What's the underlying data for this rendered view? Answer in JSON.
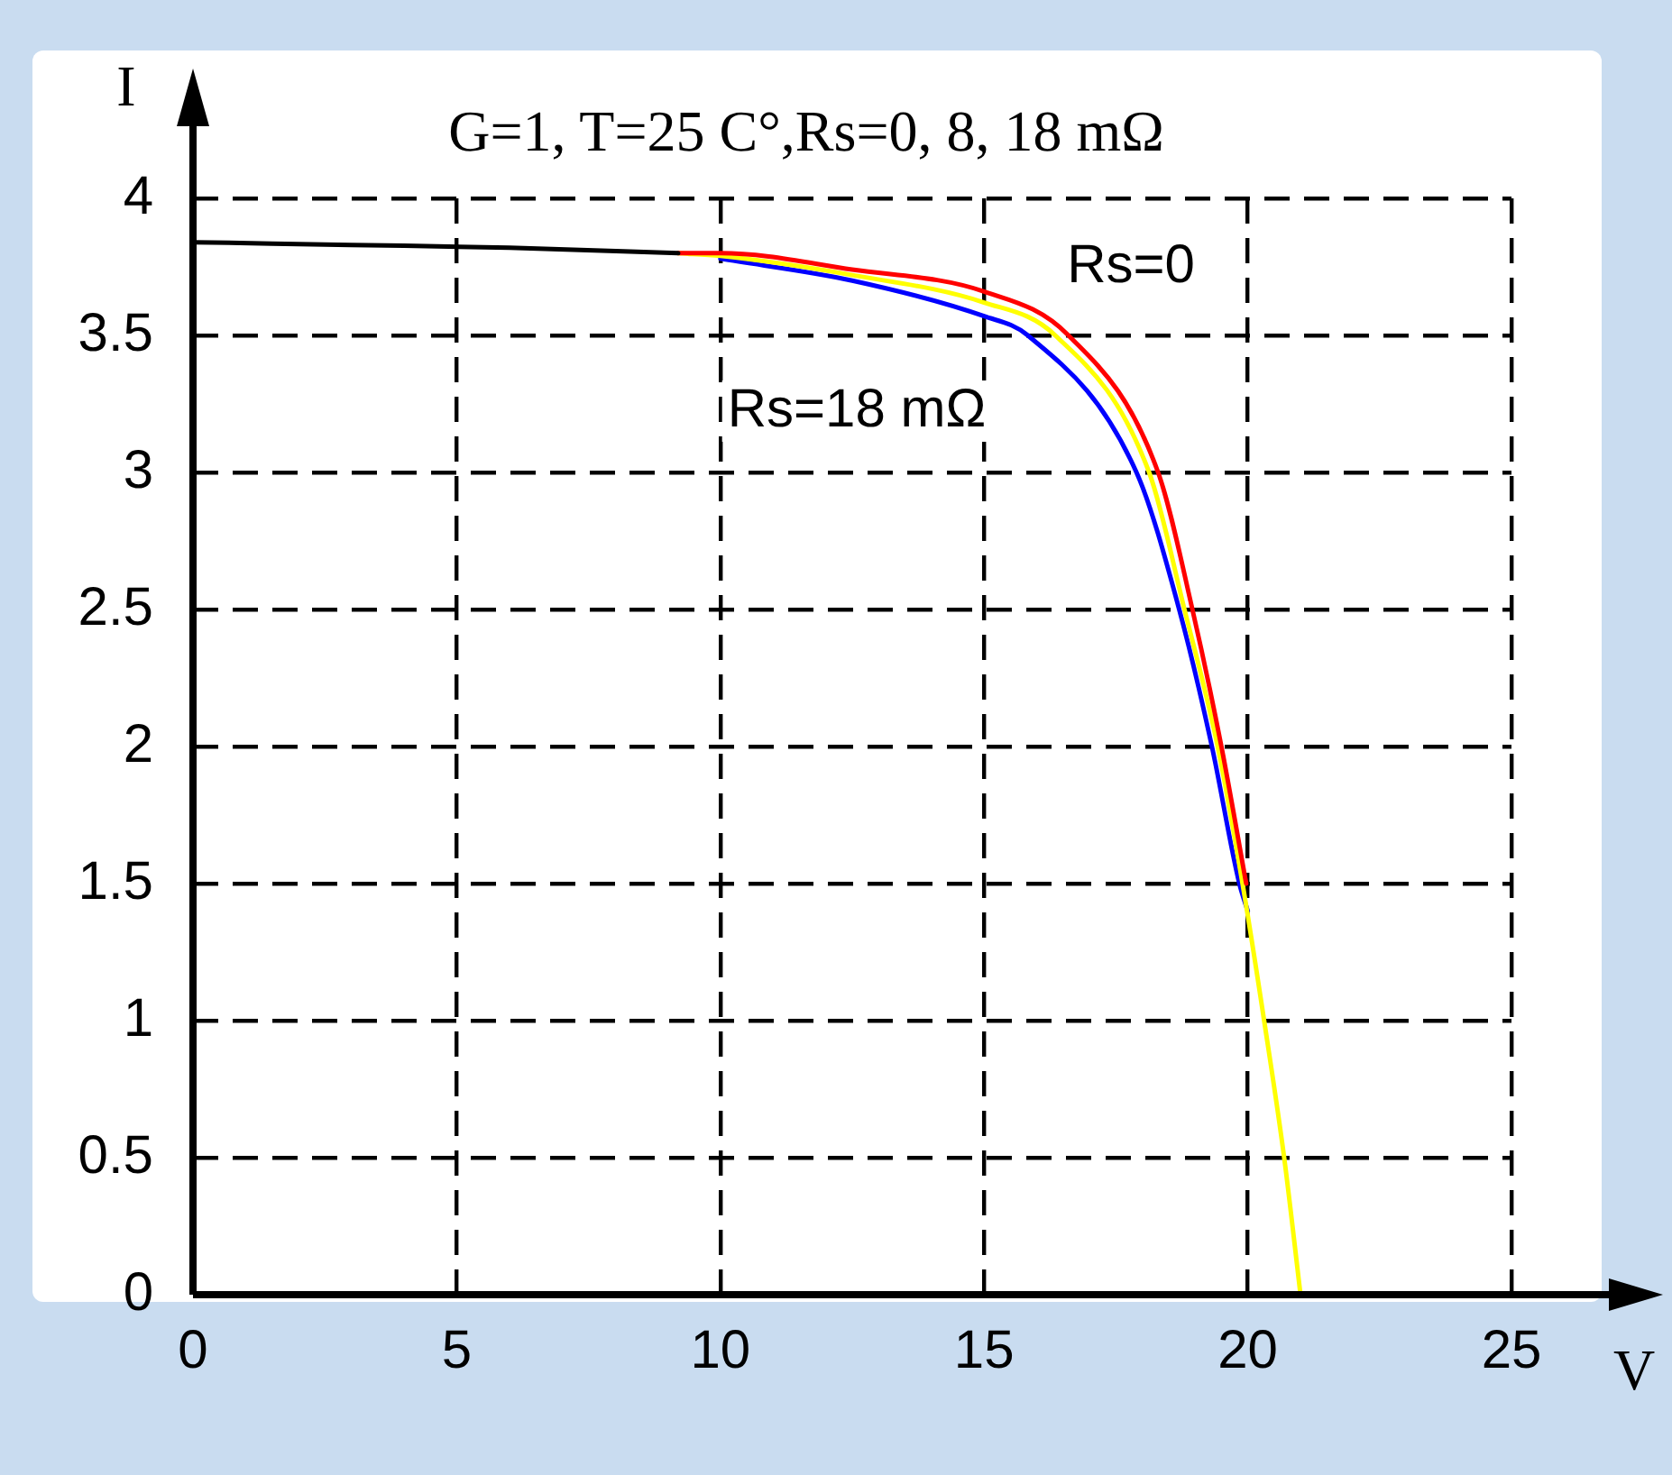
{
  "chart_data": {
    "type": "line",
    "title": "G=1, T=25 C°,Rs=0, 8, 18 mΩ",
    "xlabel": "V",
    "ylabel": "I",
    "xlim": [
      0,
      25
    ],
    "xticks": [
      0,
      5,
      10,
      15,
      20,
      25
    ],
    "ylim": [
      0,
      4
    ],
    "yticks": [
      0,
      0.5,
      1,
      1.5,
      2,
      2.5,
      3,
      3.5,
      4
    ],
    "grid": true,
    "legend": false,
    "marker": "none",
    "line_style": "solid",
    "series": [
      {
        "color": "#000000",
        "x": [
          0,
          3,
          6,
          9.2
        ],
        "values": [
          3.84,
          3.83,
          3.82,
          3.8
        ]
      },
      {
        "name": "Rs=0",
        "color": "#ff0000",
        "x": [
          9.2,
          10,
          12.5,
          15,
          16.6,
          18.3,
          18.95,
          19.5,
          19.97
        ],
        "values": [
          3.8,
          3.8,
          3.74,
          3.66,
          3.5,
          3,
          2.5,
          2,
          1.5
        ]
      },
      {
        "color": "#ffff00",
        "x": [
          9.2,
          10,
          12.5,
          15,
          16.35,
          18.13,
          18.8,
          19.43,
          19.9,
          20.31,
          20.69,
          21.0
        ],
        "values": [
          3.8,
          3.79,
          3.72,
          3.62,
          3.5,
          3,
          2.5,
          2,
          1.5,
          1,
          0.5,
          0
        ]
      },
      {
        "name": "Rs=18 mΩ",
        "color": "#0000ff",
        "x": [
          10,
          12.5,
          15,
          15.83,
          17.89,
          18.7,
          19.32,
          19.84,
          20.0
        ],
        "values": [
          3.78,
          3.7,
          3.57,
          3.5,
          3,
          2.5,
          2,
          1.5,
          1.4
        ]
      }
    ]
  }
}
